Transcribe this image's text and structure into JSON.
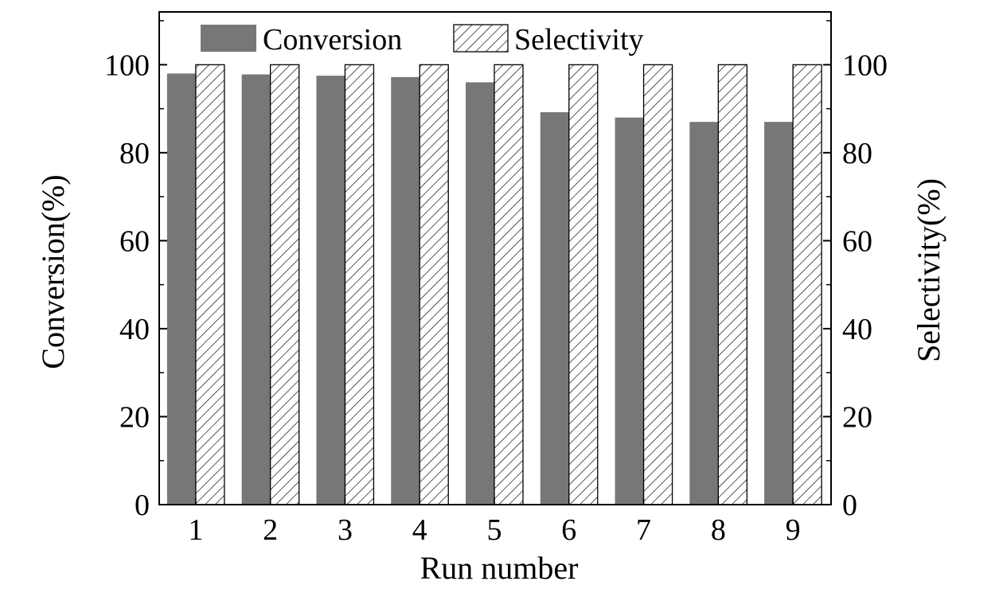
{
  "chart_data": {
    "type": "bar",
    "categories": [
      "1",
      "2",
      "3",
      "4",
      "5",
      "6",
      "7",
      "8",
      "9"
    ],
    "series": [
      {
        "name": "Conversion",
        "values": [
          98,
          97.8,
          97.5,
          97.2,
          96,
          89.2,
          88,
          87,
          87
        ],
        "axis": "left"
      },
      {
        "name": "Selectivity",
        "values": [
          100,
          100,
          100,
          100,
          100,
          100,
          100,
          100,
          100
        ],
        "axis": "right"
      }
    ],
    "xlabel": "Run number",
    "ylabel_left": "Conversion(%)",
    "ylabel_right": "Selectivity(%)",
    "ylim": [
      0,
      112
    ],
    "yticks": [
      0,
      20,
      40,
      60,
      80,
      100
    ],
    "legend_position": "top",
    "grid": false,
    "colors": {
      "conversion": "#777777",
      "selectivity_pattern": "hatched",
      "axis": "#000000"
    }
  }
}
